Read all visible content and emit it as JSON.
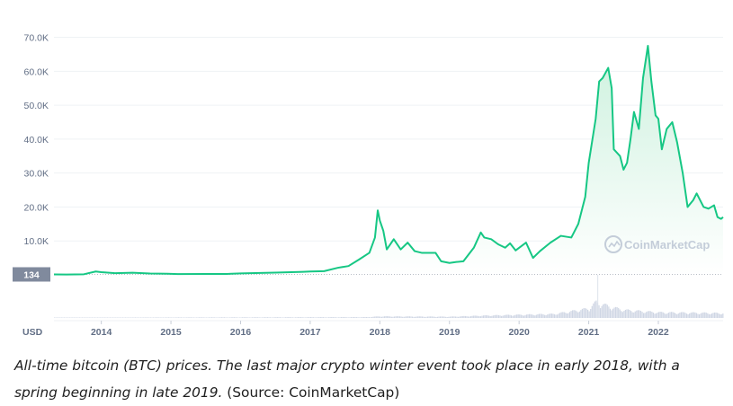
{
  "chart_data": {
    "type": "area",
    "currency_label": "USD",
    "y_ticks": [
      "70.0K",
      "60.0K",
      "50.0K",
      "40.0K",
      "30.0K",
      "20.0K",
      "10.0K"
    ],
    "y_tick_values": [
      70000,
      60000,
      50000,
      40000,
      30000,
      20000,
      10000
    ],
    "ylim": [
      0,
      72000
    ],
    "x_ticks": [
      "2014",
      "2015",
      "2016",
      "2017",
      "2018",
      "2019",
      "2020",
      "2021",
      "2022"
    ],
    "xlim": [
      2013.32,
      2022.93
    ],
    "start_price_label": "134",
    "start_price": 134,
    "watermark": "CoinMarketCap",
    "grid": true,
    "series": [
      {
        "values": [
          [
            2013.32,
            134
          ],
          [
            2013.5,
            100
          ],
          [
            2013.75,
            180
          ],
          [
            2013.92,
            1000
          ],
          [
            2014.0,
            800
          ],
          [
            2014.2,
            480
          ],
          [
            2014.45,
            620
          ],
          [
            2014.7,
            400
          ],
          [
            2014.95,
            320
          ],
          [
            2015.1,
            220
          ],
          [
            2015.5,
            250
          ],
          [
            2015.8,
            280
          ],
          [
            2016.0,
            420
          ],
          [
            2016.5,
            650
          ],
          [
            2016.9,
            900
          ],
          [
            2017.0,
            1000
          ],
          [
            2017.2,
            1100
          ],
          [
            2017.4,
            2100
          ],
          [
            2017.55,
            2600
          ],
          [
            2017.7,
            4500
          ],
          [
            2017.85,
            6500
          ],
          [
            2017.93,
            11000
          ],
          [
            2017.97,
            19000
          ],
          [
            2018.0,
            16000
          ],
          [
            2018.05,
            13000
          ],
          [
            2018.1,
            7500
          ],
          [
            2018.2,
            10500
          ],
          [
            2018.3,
            7500
          ],
          [
            2018.4,
            9500
          ],
          [
            2018.5,
            7000
          ],
          [
            2018.6,
            6500
          ],
          [
            2018.8,
            6500
          ],
          [
            2018.88,
            4000
          ],
          [
            2019.0,
            3500
          ],
          [
            2019.1,
            3800
          ],
          [
            2019.2,
            4000
          ],
          [
            2019.35,
            8000
          ],
          [
            2019.45,
            12500
          ],
          [
            2019.5,
            11000
          ],
          [
            2019.6,
            10500
          ],
          [
            2019.7,
            9000
          ],
          [
            2019.8,
            8000
          ],
          [
            2019.87,
            9300
          ],
          [
            2019.95,
            7200
          ],
          [
            2020.1,
            9500
          ],
          [
            2020.2,
            5000
          ],
          [
            2020.3,
            7000
          ],
          [
            2020.45,
            9500
          ],
          [
            2020.6,
            11500
          ],
          [
            2020.75,
            11000
          ],
          [
            2020.85,
            15000
          ],
          [
            2020.95,
            23000
          ],
          [
            2021.0,
            33000
          ],
          [
            2021.1,
            46000
          ],
          [
            2021.15,
            57000
          ],
          [
            2021.2,
            58000
          ],
          [
            2021.28,
            61000
          ],
          [
            2021.33,
            55000
          ],
          [
            2021.36,
            37000
          ],
          [
            2021.45,
            35000
          ],
          [
            2021.5,
            31000
          ],
          [
            2021.55,
            33000
          ],
          [
            2021.6,
            40000
          ],
          [
            2021.65,
            48000
          ],
          [
            2021.72,
            43000
          ],
          [
            2021.78,
            58000
          ],
          [
            2021.85,
            67500
          ],
          [
            2021.9,
            57000
          ],
          [
            2021.96,
            47000
          ],
          [
            2022.0,
            46000
          ],
          [
            2022.05,
            37000
          ],
          [
            2022.12,
            43000
          ],
          [
            2022.2,
            45000
          ],
          [
            2022.27,
            39000
          ],
          [
            2022.35,
            30000
          ],
          [
            2022.42,
            20000
          ],
          [
            2022.5,
            22000
          ],
          [
            2022.55,
            24000
          ],
          [
            2022.65,
            20000
          ],
          [
            2022.72,
            19500
          ],
          [
            2022.8,
            20500
          ],
          [
            2022.85,
            17000
          ],
          [
            2022.9,
            16500
          ],
          [
            2022.93,
            17000
          ]
        ]
      }
    ],
    "volume_profile": [
      [
        2013.32,
        0.02
      ],
      [
        2017.8,
        0.05
      ],
      [
        2018.0,
        0.1
      ],
      [
        2019.0,
        0.08
      ],
      [
        2019.5,
        0.15
      ],
      [
        2020.0,
        0.2
      ],
      [
        2020.5,
        0.25
      ],
      [
        2021.0,
        0.6
      ],
      [
        2021.1,
        1.0
      ],
      [
        2021.3,
        0.7
      ],
      [
        2021.5,
        0.5
      ],
      [
        2022.0,
        0.35
      ],
      [
        2022.93,
        0.3
      ]
    ],
    "colors": {
      "line": "#16c784",
      "fill_top": "#cdf1de",
      "grid": "#eff2f5",
      "price_badge": "#808a9d",
      "volume": "#cfd6e4",
      "watermark": "#c4cdd9"
    }
  },
  "caption": {
    "italic_text": "All-time bitcoin (BTC) prices. The last major crypto winter event took place in early 2018, with a spring beginning in late 2019.",
    "source_text": " (Source: CoinMarketCap)"
  }
}
